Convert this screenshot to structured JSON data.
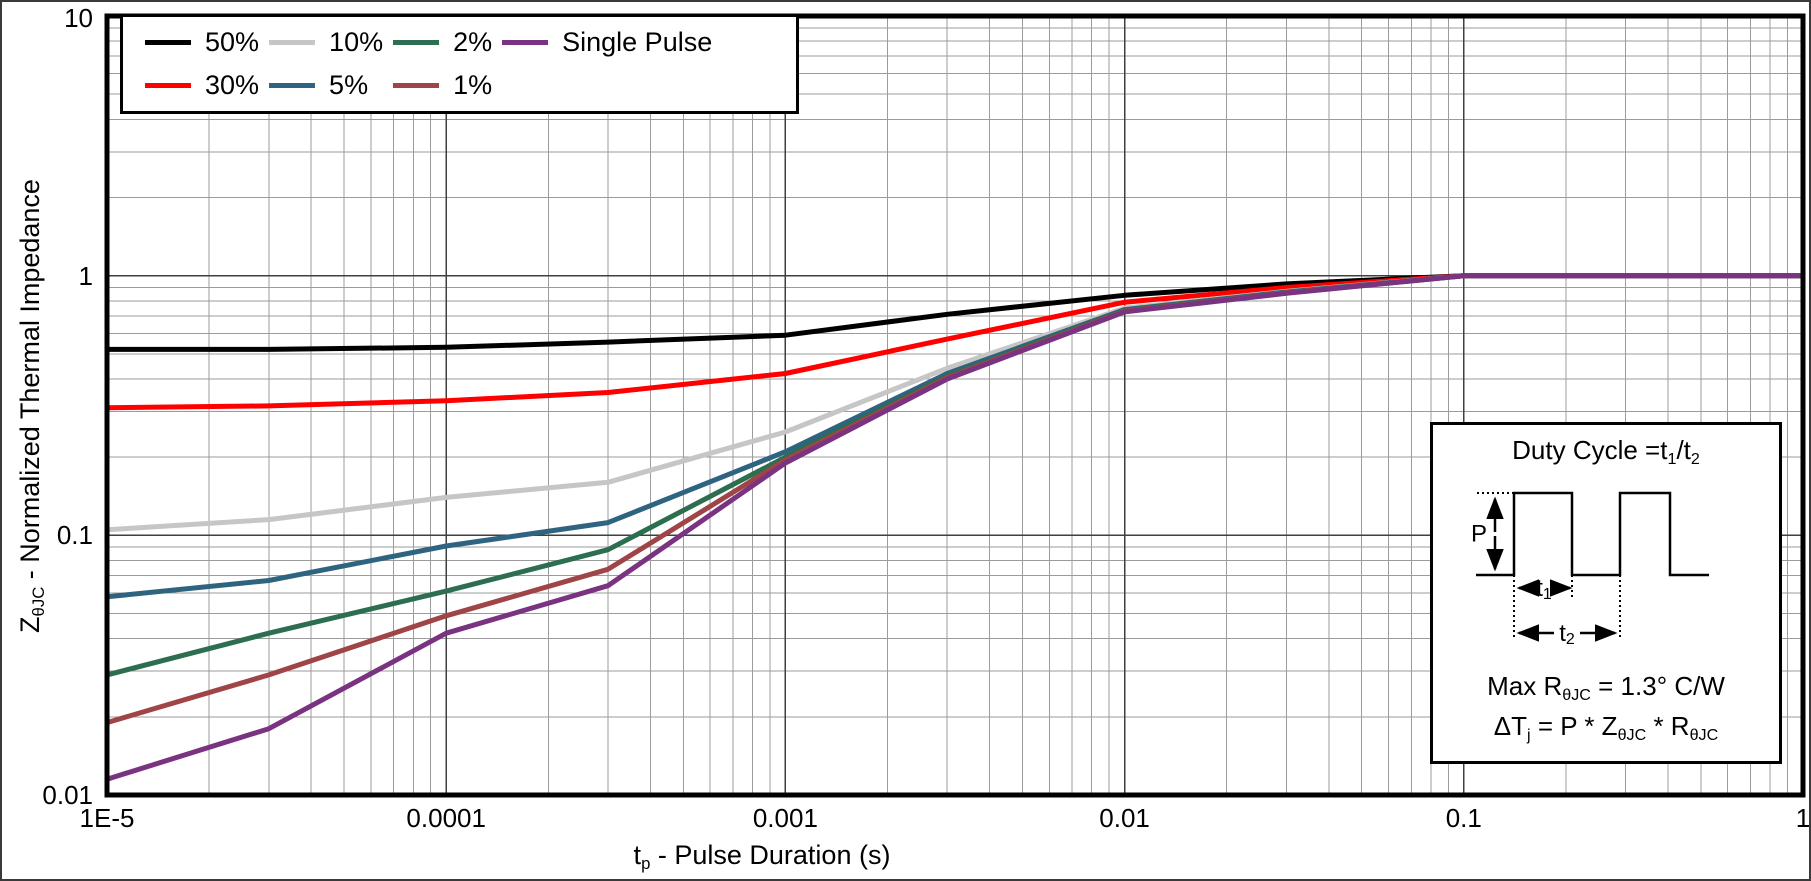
{
  "chart_data": {
    "type": "line",
    "xscale": "log",
    "yscale": "log",
    "xlabel": "tp - Pulse Duration (s)",
    "ylabel": "ZθJC - Normalized Thermal Impedance",
    "xlim": [
      1e-05,
      1
    ],
    "ylim": [
      0.01,
      10
    ],
    "grid": "log major and minor, both axes",
    "legend_position": "top-left",
    "x": [
      1e-05,
      3e-05,
      0.0001,
      0.0003,
      0.001,
      0.003,
      0.01,
      0.03,
      0.1,
      1
    ],
    "series": [
      {
        "key": "50pct",
        "name": "50%",
        "color": "#000000",
        "values": [
          0.52,
          0.52,
          0.53,
          0.555,
          0.59,
          0.71,
          0.84,
          0.93,
          1.0,
          1.0
        ]
      },
      {
        "key": "30pct",
        "name": "30%",
        "color": "#ff0000",
        "values": [
          0.31,
          0.315,
          0.33,
          0.355,
          0.42,
          0.57,
          0.79,
          0.9,
          1.0,
          1.0
        ]
      },
      {
        "key": "10pct",
        "name": "10%",
        "color": "#c6c6c6",
        "values": [
          0.105,
          0.115,
          0.14,
          0.16,
          0.25,
          0.44,
          0.75,
          0.87,
          1.0,
          1.0
        ]
      },
      {
        "key": "5pct",
        "name": "5%",
        "color": "#2f6480",
        "values": [
          0.058,
          0.067,
          0.091,
          0.112,
          0.21,
          0.42,
          0.74,
          0.865,
          1.0,
          1.0
        ]
      },
      {
        "key": "2pct",
        "name": "2%",
        "color": "#2c6e4f",
        "values": [
          0.029,
          0.042,
          0.061,
          0.088,
          0.2,
          0.41,
          0.735,
          0.86,
          1.0,
          1.0
        ]
      },
      {
        "key": "1pct",
        "name": "1%",
        "color": "#a04547",
        "values": [
          0.019,
          0.029,
          0.049,
          0.074,
          0.195,
          0.405,
          0.73,
          0.858,
          1.0,
          1.0
        ]
      },
      {
        "key": "sp",
        "name": "Single Pulse",
        "color": "#7a3380",
        "values": [
          0.0115,
          0.018,
          0.042,
          0.064,
          0.19,
          0.4,
          0.725,
          0.855,
          1.0,
          1.0
        ]
      }
    ]
  },
  "axes": {
    "x": {
      "title_parts": [
        {
          "t": "t"
        },
        {
          "sub": "p"
        },
        {
          "t": " - Pulse Duration (s)"
        }
      ],
      "ticks": [
        {
          "v": 1e-05,
          "label": "1E-5"
        },
        {
          "v": 0.0001,
          "label": "0.0001"
        },
        {
          "v": 0.001,
          "label": "0.001"
        },
        {
          "v": 0.01,
          "label": "0.01"
        },
        {
          "v": 0.1,
          "label": "0.1"
        },
        {
          "v": 1,
          "label": "1"
        }
      ]
    },
    "y": {
      "title_parts": [
        {
          "t": "Z"
        },
        {
          "sub": "θJC"
        },
        {
          "t": " - Normalized Thermal Impedance"
        }
      ],
      "ticks": [
        {
          "v": 10,
          "label": "10"
        },
        {
          "v": 1,
          "label": "1"
        },
        {
          "v": 0.1,
          "label": "0.1"
        },
        {
          "v": 0.01,
          "label": "0.01"
        }
      ]
    }
  },
  "legend": {
    "items": [
      {
        "key": "50pct",
        "label": "50%",
        "color": "#000000"
      },
      {
        "key": "30pct",
        "label": "30%",
        "color": "#ff0000"
      },
      {
        "key": "10pct",
        "label": "10%",
        "color": "#c6c6c6"
      },
      {
        "key": "5pct",
        "label": "5%",
        "color": "#2f6480"
      },
      {
        "key": "2pct",
        "label": "2%",
        "color": "#2c6e4f"
      },
      {
        "key": "1pct",
        "label": "1%",
        "color": "#a04547"
      },
      {
        "key": "sp",
        "label": "Single Pulse",
        "color": "#7a3380"
      }
    ]
  },
  "inset": {
    "title_parts": [
      {
        "t": "Duty Cycle =t"
      },
      {
        "sub": "1"
      },
      {
        "t": "/t"
      },
      {
        "sub": "2"
      }
    ],
    "formula_max_parts": [
      {
        "t": "Max R"
      },
      {
        "sub": "θJC"
      },
      {
        "t": " = 1.3° C/W"
      }
    ],
    "formula_dt_parts": [
      {
        "t": "ΔT"
      },
      {
        "sub": "j"
      },
      {
        "t": " = P * Z"
      },
      {
        "sub": "θJC"
      },
      {
        "t": " * R"
      },
      {
        "sub": "θJC"
      }
    ],
    "wave": {
      "p_label": "P",
      "t1_main": "t",
      "t1_sub": "1",
      "t2_main": "t",
      "t2_sub": "2"
    }
  },
  "style": {
    "grid_minor_color": "#9b9b9b",
    "grid_major_color": "#3f3f3f",
    "frame_color": "#000000",
    "curve_width": 5
  }
}
